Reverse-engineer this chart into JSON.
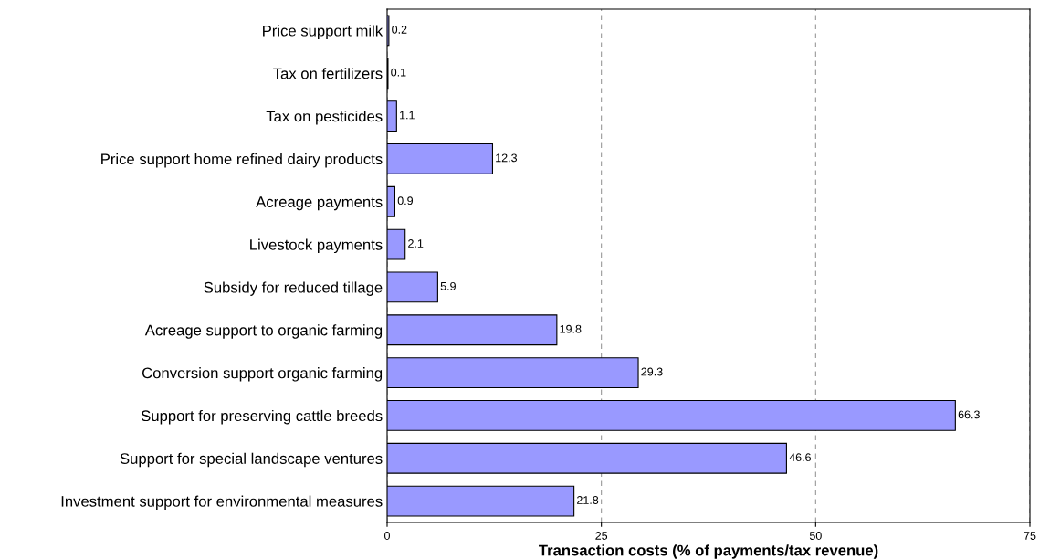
{
  "chart_data": {
    "type": "bar",
    "orientation": "horizontal",
    "xlabel": "Transaction costs (% of payments/tax revenue)",
    "categories": [
      "Price support milk",
      "Tax on fertilizers",
      "Tax on pesticides",
      "Price support home refined dairy products",
      "Acreage payments",
      "Livestock payments",
      "Subsidy for reduced tillage",
      "Acreage support to organic farming",
      "Conversion support organic farming",
      "Support for preserving cattle breeds",
      "Support for special landscape ventures",
      "Investment support for environmental measures"
    ],
    "values": [
      0.2,
      0.1,
      1.1,
      12.3,
      0.9,
      2.1,
      5.9,
      19.8,
      29.3,
      66.3,
      46.6,
      21.8
    ],
    "color": "#9999ff",
    "xlim": [
      0,
      75
    ],
    "xticks": [
      0,
      25,
      50,
      75
    ],
    "grid": "x",
    "data_labels": true,
    "legend": false
  }
}
